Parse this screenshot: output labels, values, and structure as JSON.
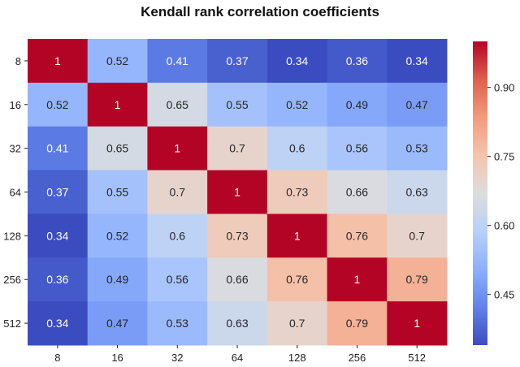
{
  "chart_data": {
    "type": "heatmap",
    "title": "Kendall rank correlation coefficients",
    "xlabel": "",
    "ylabel": "",
    "x_categories": [
      "8",
      "16",
      "32",
      "64",
      "128",
      "256",
      "512"
    ],
    "y_categories": [
      "8",
      "16",
      "32",
      "64",
      "128",
      "256",
      "512"
    ],
    "values": [
      [
        1,
        0.52,
        0.41,
        0.37,
        0.34,
        0.36,
        0.34
      ],
      [
        0.52,
        1,
        0.65,
        0.55,
        0.52,
        0.49,
        0.47
      ],
      [
        0.41,
        0.65,
        1,
        0.7,
        0.6,
        0.56,
        0.53
      ],
      [
        0.37,
        0.55,
        0.7,
        1,
        0.73,
        0.66,
        0.63
      ],
      [
        0.34,
        0.52,
        0.6,
        0.73,
        1,
        0.76,
        0.7
      ],
      [
        0.36,
        0.49,
        0.56,
        0.66,
        0.76,
        1,
        0.79
      ],
      [
        0.34,
        0.47,
        0.53,
        0.63,
        0.7,
        0.79,
        1
      ]
    ],
    "value_labels": [
      [
        "1",
        "0.52",
        "0.41",
        "0.37",
        "0.34",
        "0.36",
        "0.34"
      ],
      [
        "0.52",
        "1",
        "0.65",
        "0.55",
        "0.52",
        "0.49",
        "0.47"
      ],
      [
        "0.41",
        "0.65",
        "1",
        "0.7",
        "0.6",
        "0.56",
        "0.53"
      ],
      [
        "0.37",
        "0.55",
        "0.7",
        "1",
        "0.73",
        "0.66",
        "0.63"
      ],
      [
        "0.34",
        "0.52",
        "0.6",
        "0.73",
        "1",
        "0.76",
        "0.7"
      ],
      [
        "0.36",
        "0.49",
        "0.56",
        "0.66",
        "0.76",
        "1",
        "0.79"
      ],
      [
        "0.34",
        "0.47",
        "0.53",
        "0.63",
        "0.7",
        "0.79",
        "1"
      ]
    ],
    "colormap": "coolwarm",
    "vmin": 0.34,
    "vmax": 1,
    "colorbar": {
      "ticks": [
        0.45,
        0.6,
        0.75,
        0.9
      ],
      "tick_labels": [
        "0.45",
        "0.60",
        "0.75",
        "0.90"
      ]
    },
    "grid": false
  }
}
